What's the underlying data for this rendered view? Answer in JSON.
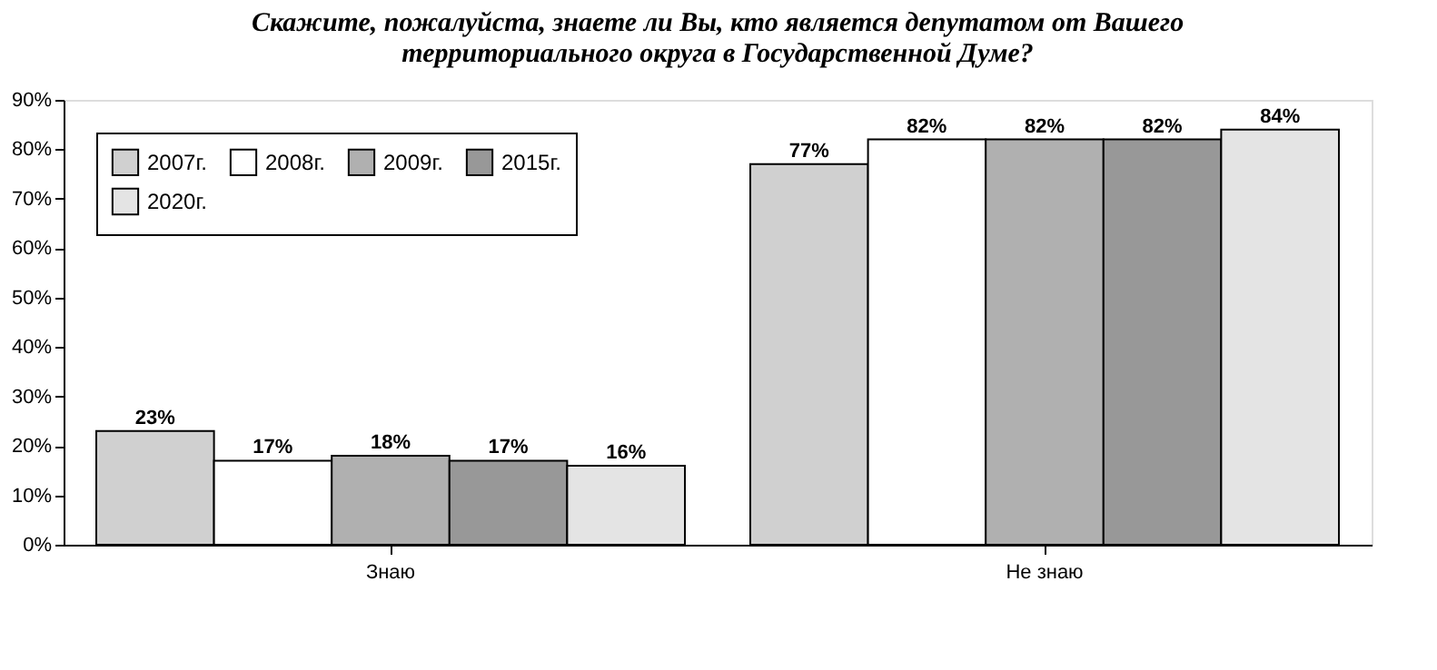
{
  "chart_data": {
    "type": "bar",
    "title": [
      "Скажите, пожалуйста, знаете ли Вы, кто является депутатом от Вашего",
      "территориального округа в Государственной Думе?"
    ],
    "categories": [
      "Знаю",
      "Не знаю"
    ],
    "series": [
      {
        "name": "2007г.",
        "color": "#d0d0d0",
        "values": [
          23,
          77
        ],
        "value_labels": [
          "23%",
          "77%"
        ]
      },
      {
        "name": "2008г.",
        "color": "#ffffff",
        "values": [
          17,
          82
        ],
        "value_labels": [
          "17%",
          "82%"
        ]
      },
      {
        "name": "2009г.",
        "color": "#b0b0b0",
        "values": [
          18,
          82
        ],
        "value_labels": [
          "18%",
          "82%"
        ]
      },
      {
        "name": "2015г.",
        "color": "#989898",
        "values": [
          17,
          82
        ],
        "value_labels": [
          "17%",
          "82%"
        ]
      },
      {
        "name": "2020г.",
        "color": "#e4e4e4",
        "values": [
          16,
          84
        ],
        "value_labels": [
          "16%",
          "84%"
        ]
      }
    ],
    "ylim": [
      0,
      90
    ],
    "yticks": [
      {
        "value": 0,
        "label": "0%"
      },
      {
        "value": 10,
        "label": "10%"
      },
      {
        "value": 20,
        "label": "20%"
      },
      {
        "value": 30,
        "label": "30%"
      },
      {
        "value": 40,
        "label": "40%"
      },
      {
        "value": 50,
        "label": "50%"
      },
      {
        "value": 60,
        "label": "60%"
      },
      {
        "value": 70,
        "label": "70%"
      },
      {
        "value": 80,
        "label": "80%"
      },
      {
        "value": 90,
        "label": "90%"
      }
    ],
    "legend": "top left",
    "grid": false
  }
}
